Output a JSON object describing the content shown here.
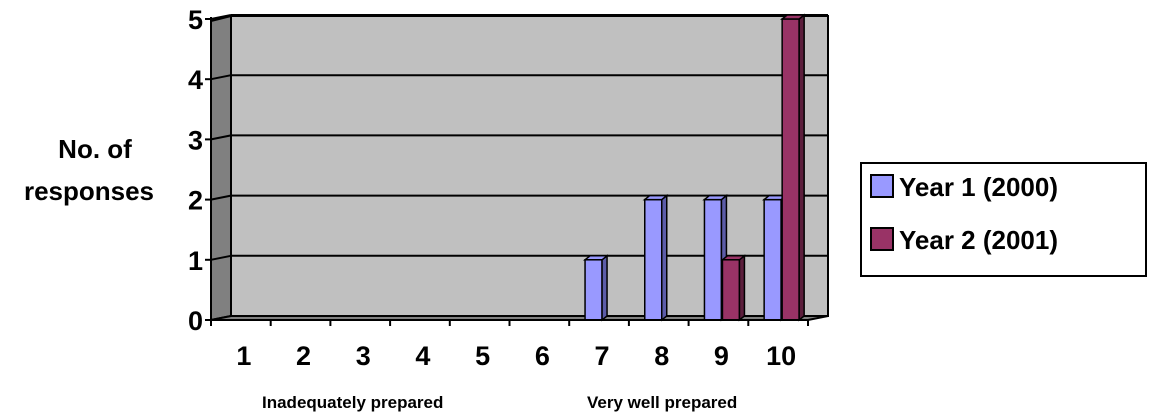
{
  "chart_data": {
    "type": "bar",
    "categories": [
      "1",
      "2",
      "3",
      "4",
      "5",
      "6",
      "7",
      "8",
      "9",
      "10"
    ],
    "series": [
      {
        "name": "Year 1 (2000)",
        "values": [
          0,
          0,
          0,
          0,
          0,
          0,
          1,
          2,
          2,
          2
        ]
      },
      {
        "name": "Year 2  (2001)",
        "values": [
          0,
          0,
          0,
          0,
          0,
          0,
          0,
          0,
          1,
          5
        ]
      }
    ],
    "ylabel": [
      "No. of",
      "responses"
    ],
    "xlabel": "",
    "x_annotations": {
      "low": "Inadequately prepared",
      "high": "Very well prepared"
    },
    "yticks": [
      "0",
      "1",
      "2",
      "3",
      "4",
      "5"
    ],
    "ylim": [
      0,
      5
    ],
    "grid": true,
    "legend_position": "right",
    "colors": {
      "series": [
        "#9999ff",
        "#993366"
      ],
      "series_dark": [
        "#5c5ca8",
        "#5c1e3c"
      ],
      "plot_background": "#c0c0c0",
      "plot_floor": "#808080"
    }
  }
}
